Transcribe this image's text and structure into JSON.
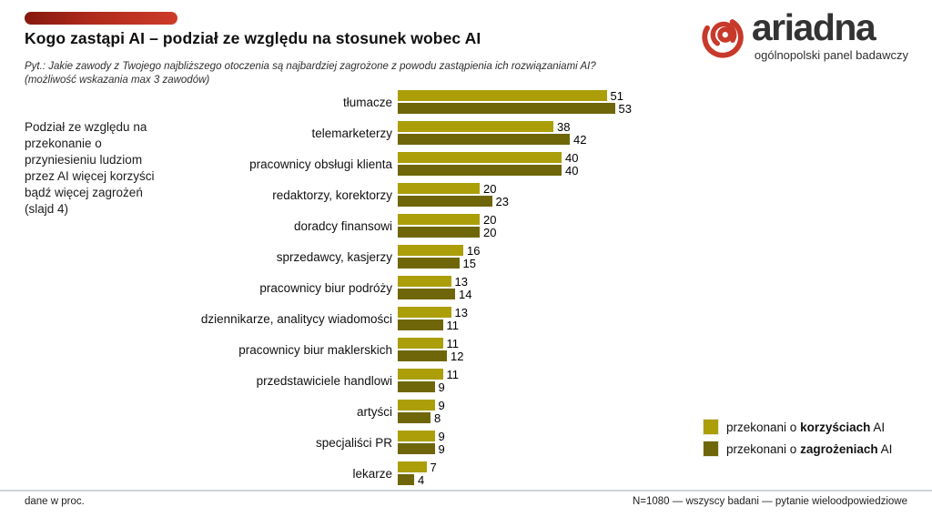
{
  "slide": {
    "title": "Kogo zastąpi AI – podział ze względu na stosunek wobec AI",
    "question_line1": "Pyt.: Jakie zawody z Twojego najbliższego otoczenia są najbardziej zagrożone z powodu zastąpienia ich rozwiązaniami AI?",
    "question_line2": "(możliwość wskazania max 3 zawodów)",
    "side_note": "Podział ze względu na\nprzekonanie o\nprzyniesieniu ludziom\nprzez AI więcej korzyści\nbądź więcej zagrożeń\n(slajd 4)",
    "footer_left": "dane w proc.",
    "footer_right": "N=1080 — wszyscy badani — pytanie wieloodpowiedziowe"
  },
  "logo": {
    "wordmark": "ariadna",
    "tagline": "ogólnopolski panel badawczy",
    "icon": "red-spiral-icon",
    "icon_color": "#c7392a",
    "text_color": "#333333"
  },
  "legend": [
    {
      "prefix": "przekonani o ",
      "bold": "korzyściach",
      "suffix": " AI"
    },
    {
      "prefix": "przekonani o ",
      "bold": "zagrożeniach",
      "suffix": " AI"
    }
  ],
  "colors": {
    "benefits_bar": "#ab9e09",
    "threats_bar": "#6f6609",
    "accent_red": "#b02a1c"
  },
  "chart_data": {
    "type": "bar",
    "orientation": "horizontal",
    "title": "Kogo zastąpi AI – podział ze względu na stosunek wobec AI",
    "unit": "percent",
    "xlim": [
      0,
      60
    ],
    "grid": false,
    "value_labels": true,
    "legend_position": "bottom-right",
    "categories": [
      "tłumacze",
      "telemarketerzy",
      "pracownicy obsługi klienta",
      "redaktorzy, korektorzy",
      "doradcy finansowi",
      "sprzedawcy, kasjerzy",
      "pracownicy biur podróży",
      "dziennikarze, analitycy wiadomości",
      "pracownicy biur maklerskich",
      "przedstawiciele handlowi",
      "artyści",
      "specjaliści PR",
      "lekarze"
    ],
    "series": [
      {
        "name": "przekonani o korzyściach AI",
        "key": "korzysci",
        "color": "#ab9e09",
        "values": [
          51,
          38,
          40,
          20,
          20,
          16,
          13,
          13,
          11,
          11,
          9,
          9,
          7
        ]
      },
      {
        "name": "przekonani o zagrożeniach AI",
        "key": "zagrozenia",
        "color": "#6f6609",
        "values": [
          53,
          42,
          40,
          23,
          20,
          15,
          14,
          11,
          12,
          9,
          8,
          9,
          4
        ]
      }
    ]
  }
}
